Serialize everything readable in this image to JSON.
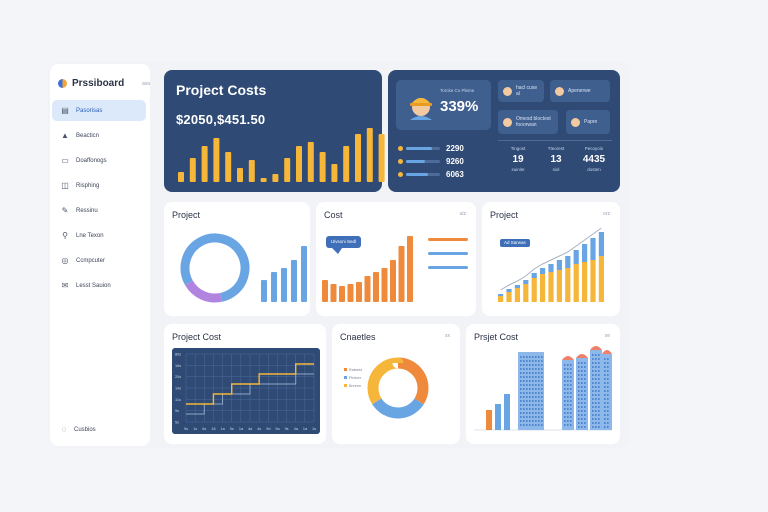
{
  "app": {
    "brand": "Prssiboard",
    "brand_sub": "ava",
    "footer_label": "Cusbios"
  },
  "sidebar": {
    "items": [
      {
        "label": "Pasorisas",
        "icon": "document-icon",
        "glyph": "▤",
        "active": true
      },
      {
        "label": "Beacticn",
        "icon": "alert-icon",
        "glyph": "▲",
        "active": false
      },
      {
        "label": "Doaffonogs",
        "icon": "folder-icon",
        "glyph": "▭",
        "active": false
      },
      {
        "label": "Risphing",
        "icon": "chart-icon",
        "glyph": "◫",
        "active": false
      },
      {
        "label": "Ressinu",
        "icon": "wrench-icon",
        "glyph": "✎",
        "active": false
      },
      {
        "label": "Lne Texon",
        "icon": "person-icon",
        "glyph": "⚲",
        "active": false
      },
      {
        "label": "Ccmpcuter",
        "icon": "settings-icon",
        "glyph": "◎",
        "active": false
      },
      {
        "label": "Lesst Sauion",
        "icon": "mail-icon",
        "glyph": "✉",
        "active": false
      }
    ]
  },
  "kpi": {
    "title": "Project Costs",
    "value": "$2050,$451.50",
    "bars": [
      10,
      24,
      36,
      44,
      30,
      14,
      22,
      4,
      8,
      24,
      36,
      40,
      30,
      18,
      36,
      48,
      54,
      48
    ]
  },
  "team": {
    "worker_caption": "Torcke Co Pleme",
    "percent": "339%",
    "mini_cards": [
      {
        "label": "hacl cuse al",
        "icon": "avatar-icon"
      },
      {
        "label": "Apenerwe",
        "icon": "avatar-icon"
      },
      {
        "label": "Omesd bloctest fooorwan",
        "icon": "avatar-icon"
      },
      {
        "label": "Papre",
        "icon": "document-icon"
      }
    ],
    "progress": [
      {
        "label": "2290",
        "value": 0.75
      },
      {
        "label": "9260",
        "value": 0.55
      },
      {
        "label": "6063",
        "value": 0.65
      }
    ],
    "stats": [
      {
        "label": "Tingost",
        "value": "19",
        "sub": "suinite"
      },
      {
        "label": "Tteorest",
        "value": "13",
        "sub": "siol"
      },
      {
        "label": "Pecoyoin",
        "value": "4435",
        "sub": "dosten"
      }
    ]
  },
  "charts": {
    "project_donut": {
      "title": "Project",
      "donut": {
        "segments": [
          {
            "value": 80,
            "color": "#6aa5e3"
          },
          {
            "value": 20,
            "color": "#b184e0"
          }
        ]
      },
      "bars": [
        22,
        30,
        34,
        42,
        56
      ]
    },
    "cost": {
      "title": "Cost",
      "menu": "uiz",
      "tooltip": "Ulvsoni Sedl",
      "bars": [
        22,
        18,
        16,
        18,
        20,
        26,
        30,
        34,
        42,
        56,
        66
      ]
    },
    "project_stacked": {
      "title": "Project",
      "menu": "orz",
      "legend_tag": "Ad Sarwas",
      "stacks": [
        [
          6,
          2
        ],
        [
          10,
          3
        ],
        [
          14,
          3
        ],
        [
          18,
          4
        ],
        [
          24,
          5
        ],
        [
          28,
          6
        ],
        [
          30,
          8
        ],
        [
          32,
          10
        ],
        [
          34,
          12
        ],
        [
          38,
          14
        ],
        [
          40,
          18
        ],
        [
          42,
          22
        ],
        [
          46,
          24
        ]
      ]
    },
    "project_cost_line": {
      "title": "Project Cost",
      "x_ticks": [
        "9s",
        "1s",
        "6s",
        "16",
        "1a",
        "5s",
        "1a",
        "4a",
        "4s",
        "9d",
        "9a",
        "9s",
        "4a",
        "1a",
        "1s"
      ],
      "y_ticks": [
        "80s",
        "16s",
        "20s",
        "14s",
        "11s",
        "9s",
        "5s"
      ],
      "series_a": [
        1,
        1,
        1,
        2,
        2,
        3,
        3,
        3,
        4,
        4,
        4,
        4,
        5,
        5,
        5
      ],
      "series_b": [
        0,
        0,
        1,
        1,
        2,
        2,
        2,
        3,
        3,
        3,
        3,
        3,
        4,
        4,
        4
      ]
    },
    "countries": {
      "title": "Cnaetles",
      "menu": "sx",
      "legend": [
        "Ratsest",
        "Pintoer",
        "Brzenn"
      ],
      "segments": [
        {
          "value": 34,
          "color": "#ef8a3c"
        },
        {
          "value": 32,
          "color": "#6aa5e3"
        },
        {
          "value": 34,
          "color": "#f5b63a"
        }
      ]
    },
    "project_cost_bldg": {
      "title": "Prsjet Cost",
      "menu": "xe",
      "bars": [
        {
          "value": 20,
          "color": "#ef8a3c"
        },
        {
          "value": 26,
          "color": "#6aa5e3"
        },
        {
          "value": 36,
          "color": "#6aa5e3"
        }
      ],
      "buildings": [
        78,
        70,
        72,
        80,
        86
      ]
    }
  }
}
